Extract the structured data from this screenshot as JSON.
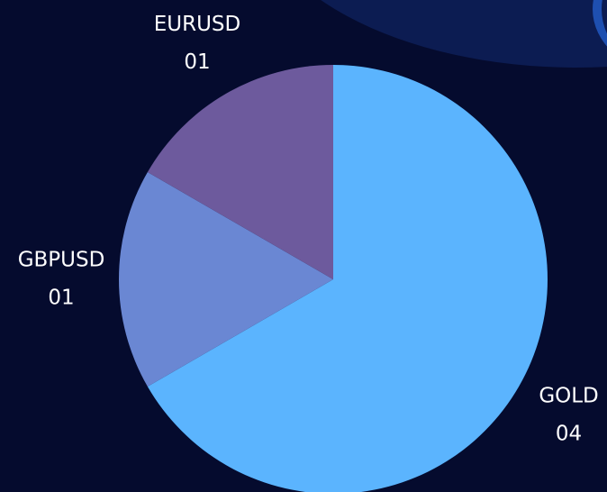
{
  "chart_data": {
    "type": "pie",
    "categories": [
      "GOLD",
      "GBPUSD",
      "EURUSD"
    ],
    "values": [
      4,
      1,
      1
    ],
    "value_labels": [
      "04",
      "01",
      "01"
    ],
    "colors": [
      "#5bb4fe",
      "#6a87d3",
      "#6d5a9d"
    ]
  }
}
